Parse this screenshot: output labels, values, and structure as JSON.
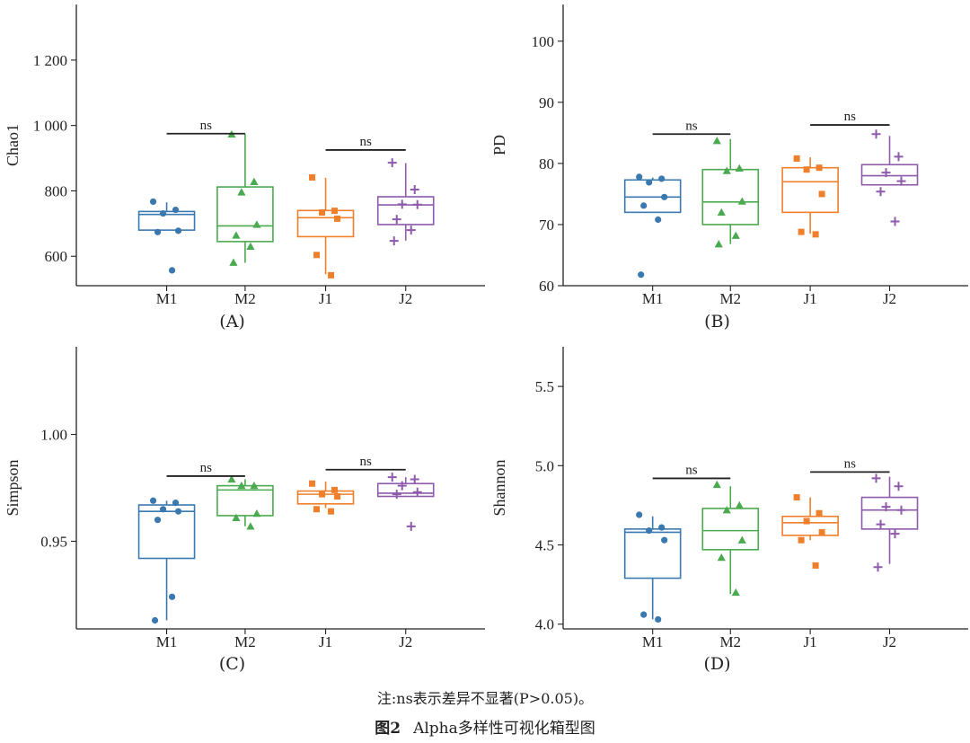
{
  "colors": {
    "M1": "#3a78b0",
    "M2": "#4aaa4f",
    "J1": "#ef7f2a",
    "J2": "#8e5aab",
    "axis": "#222222"
  },
  "markers": {
    "M1": "circle",
    "M2": "triangle",
    "J1": "square",
    "J2": "plus"
  },
  "chart_data": [
    {
      "type": "box",
      "panel": "(A)",
      "ylabel": "Chao1",
      "yticks": [
        600,
        800,
        1000,
        1200
      ],
      "ytick_labels": [
        "600",
        "800",
        "1 000",
        "1 200"
      ],
      "ylim": [
        510,
        1370
      ],
      "categories": [
        "M1",
        "M2",
        "J1",
        "J2"
      ],
      "boxes": [
        {
          "q1": 680,
          "median": 728,
          "q3": 737,
          "wlow": 680,
          "whigh": 765
        },
        {
          "q1": 645,
          "median": 693,
          "q3": 812,
          "wlow": 580,
          "whigh": 975
        },
        {
          "q1": 660,
          "median": 718,
          "q3": 740,
          "wlow": 545,
          "whigh": 840
        },
        {
          "q1": 697,
          "median": 757,
          "q3": 782,
          "wlow": 648,
          "whigh": 885
        }
      ],
      "points": [
        [
          767,
          742,
          731,
          678,
          674,
          557
        ],
        [
          973,
          828,
          796,
          697,
          664,
          630,
          581
        ],
        [
          841,
          739,
          734,
          715,
          604,
          542
        ],
        [
          886,
          804,
          759,
          758,
          713,
          680,
          647
        ]
      ],
      "comparisons": [
        {
          "from": "M1",
          "to": "M2",
          "y": 975,
          "label": "ns"
        },
        {
          "from": "J1",
          "to": "J2",
          "y": 925,
          "label": "ns"
        }
      ]
    },
    {
      "type": "box",
      "panel": "(B)",
      "ylabel": "PD",
      "yticks": [
        60,
        70,
        80,
        90,
        100
      ],
      "ytick_labels": [
        "60",
        "70",
        "80",
        "90",
        "100"
      ],
      "ylim": [
        60,
        106
      ],
      "categories": [
        "M1",
        "M2",
        "J1",
        "J2"
      ],
      "boxes": [
        {
          "q1": 72,
          "median": 74.5,
          "q3": 77.3,
          "wlow": 72,
          "whigh": 77.7
        },
        {
          "q1": 70,
          "median": 73.7,
          "q3": 79,
          "wlow": 66.8,
          "whigh": 84
        },
        {
          "q1": 72,
          "median": 77,
          "q3": 79.3,
          "wlow": 68.5,
          "whigh": 81
        },
        {
          "q1": 76.5,
          "median": 78,
          "q3": 79.8,
          "wlow": 76.5,
          "whigh": 84.5
        }
      ],
      "points": [
        [
          77.8,
          77.5,
          76.9,
          74.5,
          73.1,
          70.8,
          61.8
        ],
        [
          83.7,
          79.2,
          78.8,
          73.8,
          72.0,
          68.2,
          66.8
        ],
        [
          80.8,
          79.3,
          79.0,
          75.0,
          68.8,
          68.4
        ],
        [
          84.8,
          81.1,
          78.5,
          77.1,
          75.4,
          70.5
        ]
      ],
      "comparisons": [
        {
          "from": "M1",
          "to": "M2",
          "y": 84.8,
          "label": "ns"
        },
        {
          "from": "J1",
          "to": "J2",
          "y": 86.3,
          "label": "ns"
        }
      ]
    },
    {
      "type": "box",
      "panel": "(C)",
      "ylabel": "Simpson",
      "yticks": [
        0.95,
        1.0
      ],
      "ytick_labels": [
        "0.95",
        "1.00"
      ],
      "ylim": [
        0.909,
        1.041
      ],
      "categories": [
        "M1",
        "M2",
        "J1",
        "J2"
      ],
      "boxes": [
        {
          "q1": 0.942,
          "median": 0.964,
          "q3": 0.967,
          "wlow": 0.913,
          "whigh": 0.969
        },
        {
          "q1": 0.962,
          "median": 0.974,
          "q3": 0.976,
          "wlow": 0.957,
          "whigh": 0.979
        },
        {
          "q1": 0.9675,
          "median": 0.972,
          "q3": 0.9735,
          "wlow": 0.9655,
          "whigh": 0.978
        },
        {
          "q1": 0.971,
          "median": 0.9725,
          "q3": 0.977,
          "wlow": 0.971,
          "whigh": 0.98
        }
      ],
      "points": [
        [
          0.969,
          0.968,
          0.965,
          0.964,
          0.96,
          0.924,
          0.913
        ],
        [
          0.979,
          0.976,
          0.976,
          0.963,
          0.961,
          0.957
        ],
        [
          0.977,
          0.974,
          0.972,
          0.971,
          0.965,
          0.964
        ],
        [
          0.98,
          0.979,
          0.976,
          0.973,
          0.972,
          0.957
        ]
      ],
      "comparisons": [
        {
          "from": "M1",
          "to": "M2",
          "y": 0.9805,
          "label": "ns"
        },
        {
          "from": "J1",
          "to": "J2",
          "y": 0.9835,
          "label": "ns"
        }
      ]
    },
    {
      "type": "box",
      "panel": "(D)",
      "ylabel": "Shannon",
      "yticks": [
        4.0,
        4.5,
        5.0,
        5.5
      ],
      "ytick_labels": [
        "4.0",
        "4.5",
        "5.0",
        "5.5"
      ],
      "ylim": [
        3.97,
        5.75
      ],
      "categories": [
        "M1",
        "M2",
        "J1",
        "J2"
      ],
      "boxes": [
        {
          "q1": 4.29,
          "median": 4.58,
          "q3": 4.6,
          "wlow": 4.03,
          "whigh": 4.68
        },
        {
          "q1": 4.47,
          "median": 4.59,
          "q3": 4.73,
          "wlow": 4.19,
          "whigh": 4.87
        },
        {
          "q1": 4.56,
          "median": 4.64,
          "q3": 4.68,
          "wlow": 4.53,
          "whigh": 4.8
        },
        {
          "q1": 4.6,
          "median": 4.72,
          "q3": 4.8,
          "wlow": 4.38,
          "whigh": 4.93
        }
      ],
      "points": [
        [
          4.69,
          4.61,
          4.59,
          4.53,
          4.06,
          4.03
        ],
        [
          4.88,
          4.75,
          4.72,
          4.53,
          4.42,
          4.2
        ],
        [
          4.8,
          4.7,
          4.65,
          4.58,
          4.53,
          4.37
        ],
        [
          4.92,
          4.87,
          4.74,
          4.72,
          4.63,
          4.57,
          4.36
        ]
      ],
      "comparisons": [
        {
          "from": "M1",
          "to": "M2",
          "y": 4.92,
          "label": "ns"
        },
        {
          "from": "J1",
          "to": "J2",
          "y": 4.96,
          "label": "ns"
        }
      ]
    }
  ],
  "caption": {
    "note": "注:ns表示差异不显著(P>0.05)。",
    "figure_number": "图2",
    "figure_title": "Alpha多样性可视化箱型图"
  }
}
